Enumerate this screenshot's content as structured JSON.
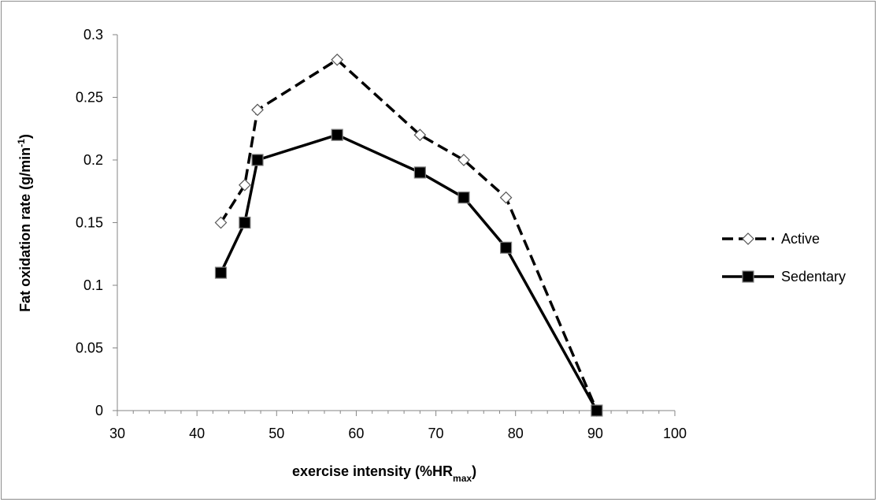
{
  "chart_data": {
    "type": "line",
    "xlabel": {
      "main": "exercise intensity (%HR",
      "sub": "max",
      "close": ")"
    },
    "ylabel": {
      "main": "Fat oxidation rate (g/min",
      "sup": "-1",
      "close": ")"
    },
    "xlim": [
      30,
      100
    ],
    "ylim": [
      0,
      0.3
    ],
    "x_ticks": [
      "30",
      "40",
      "50",
      "60",
      "70",
      "80",
      "90",
      "100"
    ],
    "y_ticks": [
      "0",
      "0.05",
      "0.1",
      "0.15",
      "0.2",
      "0.25",
      "0.3"
    ],
    "grid": false,
    "legend_position": "right",
    "series": [
      {
        "name": "Active",
        "line_style": "dashed",
        "marker": "open-diamond",
        "color": "#000000",
        "x": [
          43,
          46,
          47.6,
          57.6,
          68,
          73.5,
          78.8,
          90.2
        ],
        "y": [
          0.15,
          0.18,
          0.24,
          0.28,
          0.22,
          0.2,
          0.17,
          0.0
        ]
      },
      {
        "name": "Sedentary",
        "line_style": "solid",
        "marker": "filled-square",
        "color": "#000000",
        "x": [
          43,
          46,
          47.6,
          57.6,
          68,
          73.5,
          78.8,
          90.2
        ],
        "y": [
          0.11,
          0.15,
          0.2,
          0.22,
          0.19,
          0.17,
          0.13,
          0.0
        ]
      }
    ]
  }
}
